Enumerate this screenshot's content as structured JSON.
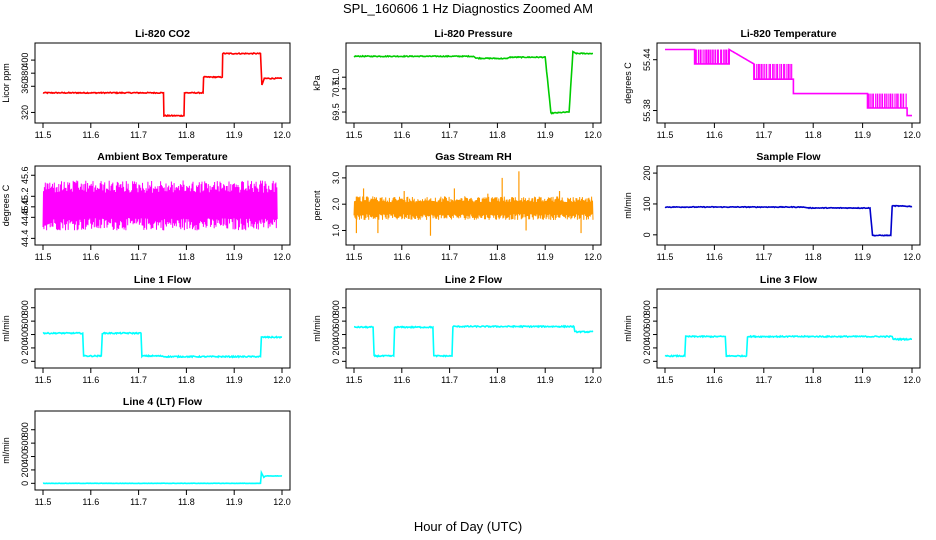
{
  "figure": {
    "title": "SPL_160606  1 Hz Diagnostics Zoomed AM",
    "xlabel": "Hour of Day (UTC)"
  },
  "chart_data": [
    {
      "type": "line",
      "title": "Li-820 CO2",
      "ylabel": "Licor ppm",
      "color": "#ff0000",
      "xlim": [
        11.5,
        12.0
      ],
      "ylim": [
        310,
        420
      ],
      "xticks": [
        "11.5",
        "11.6",
        "11.7",
        "11.8",
        "11.9",
        "12.0"
      ],
      "yticks": [
        "320",
        "360",
        "380",
        "400"
      ],
      "noise": 0.8,
      "series": [
        [
          11.5,
          350
        ],
        [
          11.752,
          350
        ],
        [
          11.753,
          315
        ],
        [
          11.795,
          315
        ],
        [
          11.796,
          350
        ],
        [
          11.835,
          350
        ],
        [
          11.836,
          374
        ],
        [
          11.875,
          374
        ],
        [
          11.876,
          410
        ],
        [
          11.955,
          410
        ],
        [
          11.958,
          362
        ],
        [
          11.963,
          372
        ],
        [
          12.0,
          372
        ]
      ]
    },
    {
      "type": "line",
      "title": "Li-820 Pressure",
      "ylabel": "kPa",
      "color": "#00cc00",
      "xlim": [
        11.5,
        12.0
      ],
      "ylim": [
        69.2,
        72.3
      ],
      "xticks": [
        "11.5",
        "11.6",
        "11.7",
        "11.8",
        "11.9",
        "12.0"
      ],
      "yticks": [
        "69.5",
        "70.5",
        "71.0"
      ],
      "noise": 0.02,
      "series": [
        [
          11.5,
          71.9
        ],
        [
          11.75,
          71.9
        ],
        [
          11.755,
          71.82
        ],
        [
          11.82,
          71.8
        ],
        [
          11.825,
          71.86
        ],
        [
          11.9,
          71.86
        ],
        [
          11.912,
          69.45
        ],
        [
          11.95,
          69.5
        ],
        [
          11.958,
          72.1
        ],
        [
          11.965,
          72.02
        ],
        [
          12.0,
          72.02
        ]
      ]
    },
    {
      "type": "line",
      "title": "Li-820 Temperature",
      "ylabel": "degrees C",
      "color": "#ff00ff",
      "xlim": [
        11.5,
        12.0
      ],
      "ylim": [
        55.37,
        55.455
      ],
      "xticks": [
        "11.5",
        "11.6",
        "11.7",
        "11.8",
        "11.9",
        "12.0"
      ],
      "yticks": [
        "55.38",
        "55.44"
      ],
      "noise": 0,
      "series": [
        [
          11.5,
          55.452
        ],
        [
          11.56,
          55.452
        ],
        [
          11.56,
          55.435
        ],
        [
          11.63,
          55.435
        ],
        [
          11.63,
          55.452
        ],
        [
          11.68,
          55.435
        ],
        [
          11.68,
          55.417
        ],
        [
          11.76,
          55.417
        ],
        [
          11.76,
          55.4
        ],
        [
          11.91,
          55.4
        ],
        [
          11.91,
          55.383
        ],
        [
          11.99,
          55.383
        ],
        [
          11.99,
          55.374
        ],
        [
          12.0,
          55.374
        ]
      ],
      "step_bands": [
        [
          11.56,
          11.63,
          55.435,
          55.452
        ],
        [
          11.68,
          11.76,
          55.417,
          55.435
        ],
        [
          11.91,
          11.99,
          55.383,
          55.4
        ]
      ]
    },
    {
      "type": "line",
      "title": "Ambient Box Temperature",
      "ylabel": "degrees C",
      "color": "#ff00ff",
      "xlim": [
        11.5,
        12.0
      ],
      "ylim": [
        44.35,
        45.7
      ],
      "xticks": [
        "11.5",
        "11.6",
        "11.7",
        "11.8",
        "11.9",
        "12.0"
      ],
      "yticks": [
        "44.4",
        "44.8",
        "45.0",
        "45.2",
        "45.6"
      ],
      "band": [
        44.55,
        45.5
      ],
      "band_x": [
        11.5,
        11.99
      ],
      "series": []
    },
    {
      "type": "line",
      "title": "Gas Stream RH",
      "ylabel": "percent",
      "color": "#ff9900",
      "xlim": [
        11.5,
        12.0
      ],
      "ylim": [
        0.6,
        3.3
      ],
      "xticks": [
        "11.5",
        "11.6",
        "11.7",
        "11.8",
        "11.9",
        "12.0"
      ],
      "yticks": [
        "1.0",
        "2.0",
        "3.0"
      ],
      "band": [
        1.4,
        2.3
      ],
      "band_x": [
        11.5,
        12.0
      ],
      "spikes": [
        [
          11.505,
          0.9
        ],
        [
          11.52,
          2.6
        ],
        [
          11.55,
          0.9
        ],
        [
          11.605,
          2.5
        ],
        [
          11.66,
          0.8
        ],
        [
          11.71,
          2.6
        ],
        [
          11.78,
          2.4
        ],
        [
          11.81,
          3.0
        ],
        [
          11.845,
          3.25
        ],
        [
          11.86,
          1.0
        ],
        [
          11.93,
          2.5
        ],
        [
          11.975,
          0.9
        ]
      ],
      "series": []
    },
    {
      "type": "line",
      "title": "Sample Flow",
      "ylabel": "ml/min",
      "color": "#0000cc",
      "xlim": [
        11.5,
        12.0
      ],
      "ylim": [
        -20,
        210
      ],
      "xticks": [
        "11.5",
        "11.6",
        "11.7",
        "11.8",
        "11.9",
        "12.0"
      ],
      "yticks": [
        "0",
        "100",
        "200"
      ],
      "noise": 1.2,
      "series": [
        [
          11.5,
          90
        ],
        [
          11.78,
          90
        ],
        [
          11.79,
          87
        ],
        [
          11.915,
          87
        ],
        [
          11.92,
          -2
        ],
        [
          11.957,
          -2
        ],
        [
          11.96,
          94
        ],
        [
          12.0,
          92
        ]
      ]
    },
    {
      "type": "line",
      "title": "Line 1 Flow",
      "ylabel": "ml/min",
      "color": "#00ffff",
      "xlim": [
        11.5,
        12.0
      ],
      "ylim": [
        -40,
        1020
      ],
      "xticks": [
        "11.5",
        "11.6",
        "11.7",
        "11.8",
        "11.9",
        "12.0"
      ],
      "yticks": [
        "0",
        "200",
        "400",
        "600",
        "800"
      ],
      "noise": 9,
      "series": [
        [
          11.5,
          420
        ],
        [
          11.583,
          420
        ],
        [
          11.585,
          80
        ],
        [
          11.622,
          80
        ],
        [
          11.624,
          420
        ],
        [
          11.705,
          420
        ],
        [
          11.707,
          80
        ],
        [
          11.75,
          80
        ],
        [
          11.752,
          70
        ],
        [
          11.955,
          70
        ],
        [
          11.957,
          360
        ],
        [
          12.0,
          360
        ]
      ]
    },
    {
      "type": "line",
      "title": "Line 2 Flow",
      "ylabel": "ml/min",
      "color": "#00ffff",
      "xlim": [
        11.5,
        12.0
      ],
      "ylim": [
        -40,
        1020
      ],
      "xticks": [
        "11.5",
        "11.6",
        "11.7",
        "11.8",
        "11.9",
        "12.0"
      ],
      "yticks": [
        "0",
        "200",
        "400",
        "600",
        "800"
      ],
      "noise": 9,
      "series": [
        [
          11.5,
          510
        ],
        [
          11.54,
          510
        ],
        [
          11.542,
          80
        ],
        [
          11.583,
          80
        ],
        [
          11.585,
          510
        ],
        [
          11.665,
          510
        ],
        [
          11.667,
          80
        ],
        [
          11.705,
          80
        ],
        [
          11.707,
          520
        ],
        [
          11.96,
          520
        ],
        [
          11.962,
          440
        ],
        [
          12.0,
          440
        ]
      ]
    },
    {
      "type": "line",
      "title": "Line 3 Flow",
      "ylabel": "ml/min",
      "color": "#00ffff",
      "xlim": [
        11.5,
        12.0
      ],
      "ylim": [
        -40,
        1020
      ],
      "xticks": [
        "11.5",
        "11.6",
        "11.7",
        "11.8",
        "11.9",
        "12.0"
      ],
      "yticks": [
        "0",
        "200",
        "400",
        "600",
        "800"
      ],
      "noise": 9,
      "series": [
        [
          11.5,
          80
        ],
        [
          11.54,
          80
        ],
        [
          11.542,
          370
        ],
        [
          11.622,
          370
        ],
        [
          11.624,
          80
        ],
        [
          11.665,
          80
        ],
        [
          11.667,
          370
        ],
        [
          11.96,
          370
        ],
        [
          11.962,
          330
        ],
        [
          12.0,
          330
        ]
      ]
    },
    {
      "type": "line",
      "title": "Line 4 (LT) Flow",
      "ylabel": "ml/min",
      "color": "#00ffff",
      "xlim": [
        11.5,
        12.0
      ],
      "ylim": [
        -40,
        1020
      ],
      "xticks": [
        "11.5",
        "11.6",
        "11.7",
        "11.8",
        "11.9",
        "12.0"
      ],
      "yticks": [
        "0",
        "200",
        "400",
        "600",
        "800"
      ],
      "noise": 2,
      "series": [
        [
          11.5,
          0
        ],
        [
          11.955,
          0
        ],
        [
          11.957,
          160
        ],
        [
          11.962,
          90
        ],
        [
          11.965,
          110
        ],
        [
          12.0,
          110
        ]
      ]
    }
  ]
}
